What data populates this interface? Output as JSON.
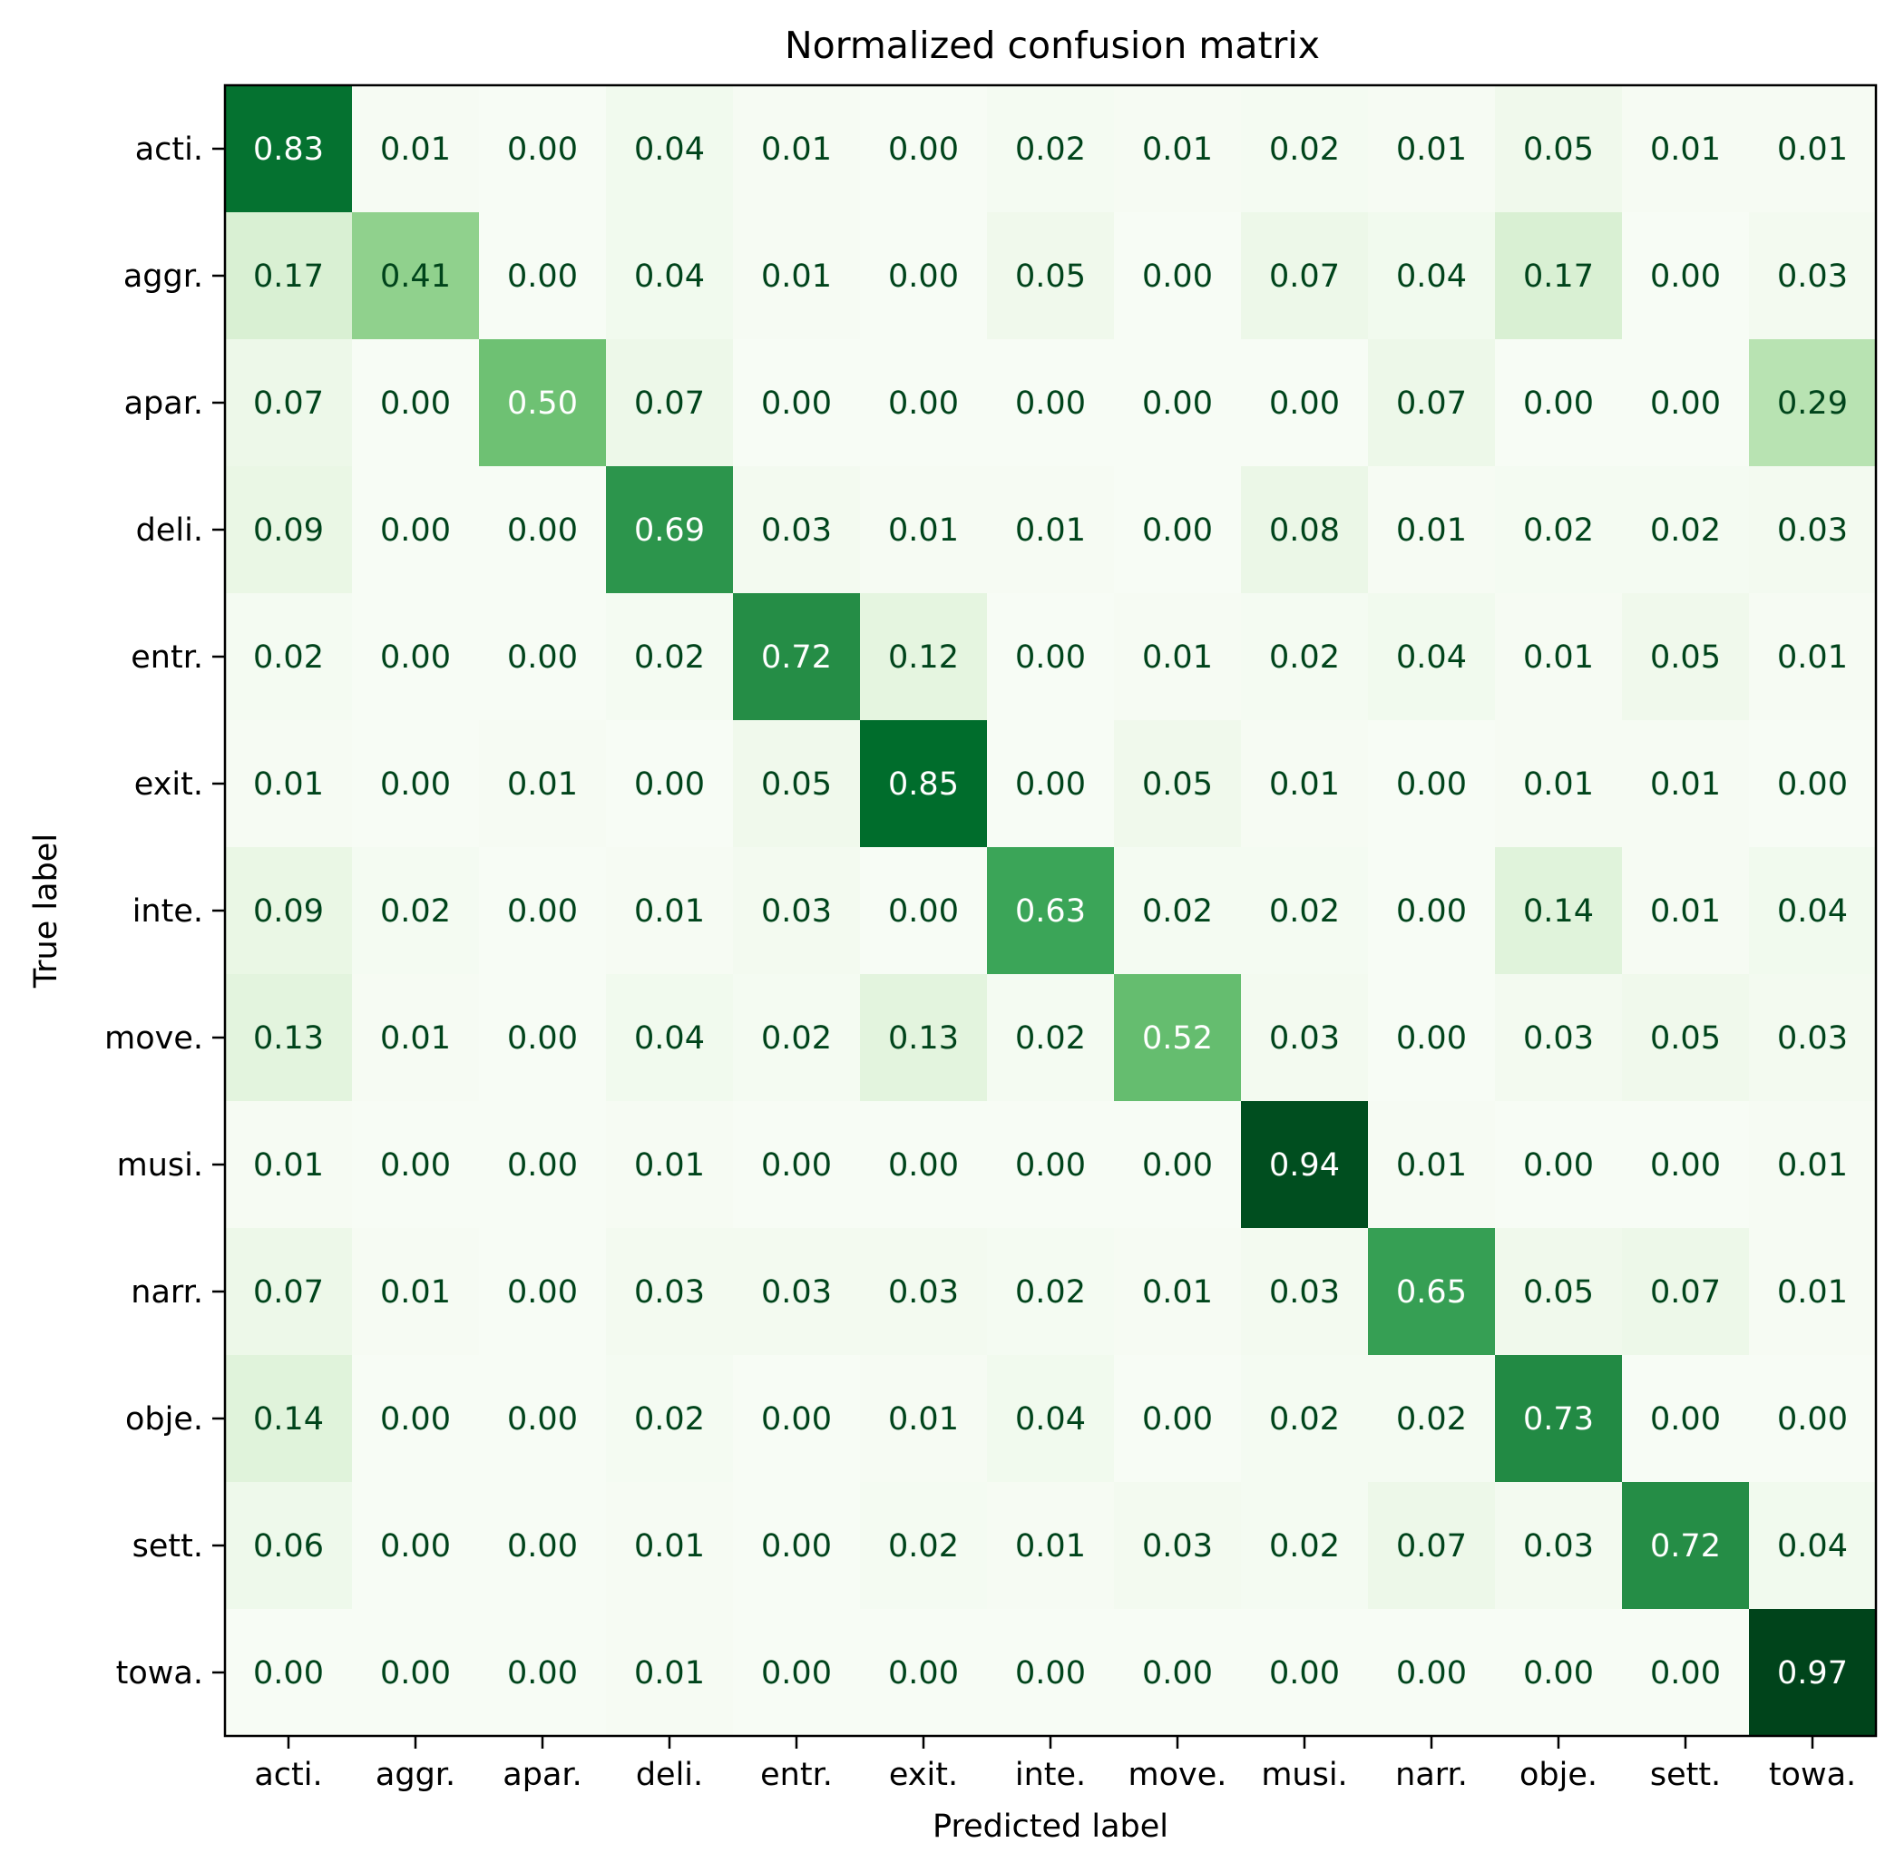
{
  "chart_data": {
    "type": "heatmap",
    "title": "Normalized confusion matrix",
    "xlabel": "Predicted label",
    "ylabel": "True label",
    "x_categories": [
      "acti.",
      "aggr.",
      "apar.",
      "deli.",
      "entr.",
      "exit.",
      "inte.",
      "move.",
      "musi.",
      "narr.",
      "obje.",
      "sett.",
      "towa."
    ],
    "y_categories": [
      "acti.",
      "aggr.",
      "apar.",
      "deli.",
      "entr.",
      "exit.",
      "inte.",
      "move.",
      "musi.",
      "narr.",
      "obje.",
      "sett.",
      "towa."
    ],
    "values": [
      [
        0.83,
        0.01,
        0.0,
        0.04,
        0.01,
        0.0,
        0.02,
        0.01,
        0.02,
        0.01,
        0.05,
        0.01,
        0.01
      ],
      [
        0.17,
        0.41,
        0.0,
        0.04,
        0.01,
        0.0,
        0.05,
        0.0,
        0.07,
        0.04,
        0.17,
        0.0,
        0.03
      ],
      [
        0.07,
        0.0,
        0.5,
        0.07,
        0.0,
        0.0,
        0.0,
        0.0,
        0.0,
        0.07,
        0.0,
        0.0,
        0.29
      ],
      [
        0.09,
        0.0,
        0.0,
        0.69,
        0.03,
        0.01,
        0.01,
        0.0,
        0.08,
        0.01,
        0.02,
        0.02,
        0.03
      ],
      [
        0.02,
        0.0,
        0.0,
        0.02,
        0.72,
        0.12,
        0.0,
        0.01,
        0.02,
        0.04,
        0.01,
        0.05,
        0.01
      ],
      [
        0.01,
        0.0,
        0.01,
        0.0,
        0.05,
        0.85,
        0.0,
        0.05,
        0.01,
        0.0,
        0.01,
        0.01,
        0.0
      ],
      [
        0.09,
        0.02,
        0.0,
        0.01,
        0.03,
        0.0,
        0.63,
        0.02,
        0.02,
        0.0,
        0.14,
        0.01,
        0.04
      ],
      [
        0.13,
        0.01,
        0.0,
        0.04,
        0.02,
        0.13,
        0.02,
        0.52,
        0.03,
        0.0,
        0.03,
        0.05,
        0.03
      ],
      [
        0.01,
        0.0,
        0.0,
        0.01,
        0.0,
        0.0,
        0.0,
        0.0,
        0.94,
        0.01,
        0.0,
        0.0,
        0.01
      ],
      [
        0.07,
        0.01,
        0.0,
        0.03,
        0.03,
        0.03,
        0.02,
        0.01,
        0.03,
        0.65,
        0.05,
        0.07,
        0.01
      ],
      [
        0.14,
        0.0,
        0.0,
        0.02,
        0.0,
        0.01,
        0.04,
        0.0,
        0.02,
        0.02,
        0.73,
        0.0,
        0.0
      ],
      [
        0.06,
        0.0,
        0.0,
        0.01,
        0.0,
        0.02,
        0.01,
        0.03,
        0.02,
        0.07,
        0.03,
        0.72,
        0.04
      ],
      [
        0.0,
        0.0,
        0.0,
        0.01,
        0.0,
        0.0,
        0.0,
        0.0,
        0.0,
        0.0,
        0.0,
        0.0,
        0.97
      ]
    ],
    "colormap": "Greens",
    "value_range": [
      0,
      0.97
    ],
    "grid": false,
    "legend": "none"
  }
}
